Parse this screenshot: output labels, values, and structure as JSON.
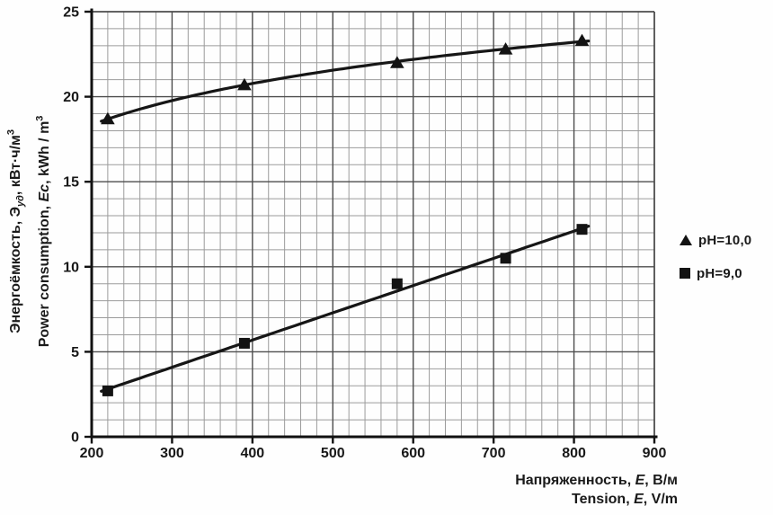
{
  "chart_data": {
    "type": "scatter",
    "x": [
      220,
      390,
      580,
      715,
      810
    ],
    "series": [
      {
        "name": "pH=10,0",
        "marker": "triangle",
        "values": [
          18.7,
          20.7,
          22.0,
          22.8,
          23.3
        ],
        "trend": "log"
      },
      {
        "name": "pH=9,0",
        "marker": "square",
        "values": [
          2.7,
          5.5,
          9.0,
          10.5,
          12.2
        ],
        "trend": "linear"
      }
    ],
    "xlim": [
      200,
      900
    ],
    "ylim": [
      0,
      25
    ],
    "x_ticks": [
      200,
      300,
      400,
      500,
      600,
      700,
      800,
      900
    ],
    "y_ticks": [
      0,
      5,
      10,
      15,
      20,
      25
    ],
    "x_minor_step": 20,
    "y_minor_step": 1,
    "grid": "both-major-and-minor",
    "legend_position": "right-outside",
    "title": "",
    "xlabel": "Напряженность, E, В/м / Tension, E, V/m",
    "ylabel": "Энергоёмкость, Эуд, кВт·ч/м³ / Power consumption, Ec, kWh / m³",
    "trend_extent_x": [
      212,
      818
    ]
  },
  "labels": {
    "y_ru": {
      "pre": "Энергоёмкость, ",
      "sym": "Э",
      "sub": "уд",
      "mid": ", кВт·ч/м",
      "sup": "3"
    },
    "y_en": {
      "pre": "Power consumption, ",
      "sym": "Ec",
      "mid": ", kWh / m",
      "sup": "3"
    },
    "x_ru": {
      "pre": "Напряженность, ",
      "sym": "E",
      "post": ", В/м"
    },
    "x_en": {
      "pre": "Tension, ",
      "sym": "E",
      "post": ", V/m"
    }
  },
  "legend": {
    "items": [
      {
        "marker": "triangle",
        "label": "pH=10,0"
      },
      {
        "marker": "square",
        "label": "pH=9,0"
      }
    ]
  },
  "colors": {
    "line": "#161616",
    "marker": "#131313",
    "grid_minor": "#9b9b9b",
    "grid_major": "#4d4d4d",
    "axis": "#111111",
    "text": "#181818",
    "background": "#fefefe"
  }
}
